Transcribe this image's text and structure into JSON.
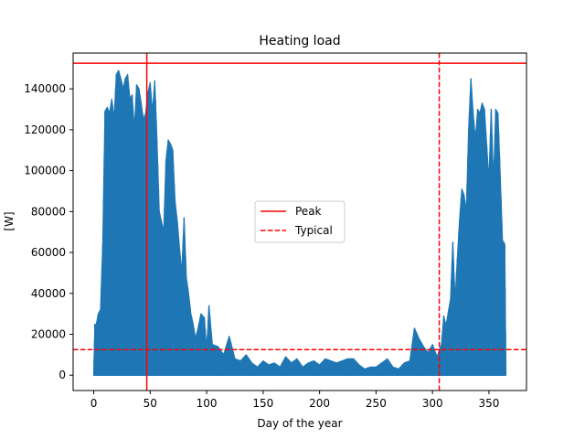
{
  "chart_data": {
    "type": "line",
    "title": "Heating load",
    "xlabel": "Day of the year",
    "ylabel": "[W]",
    "xlim": [
      -18.25,
      383.25
    ],
    "ylim": [
      -7500,
      157500
    ],
    "xticks": [
      0,
      50,
      100,
      150,
      200,
      250,
      300,
      350
    ],
    "yticks": [
      0,
      20000,
      40000,
      60000,
      80000,
      100000,
      120000,
      140000
    ],
    "grid": false,
    "legend_position": "center",
    "series_color": "#1f77b4",
    "series": [
      {
        "name": "",
        "envelope_points": [
          [
            0,
            0
          ],
          [
            1,
            25000
          ],
          [
            2,
            24000
          ],
          [
            4,
            30000
          ],
          [
            6,
            32000
          ],
          [
            8,
            64000
          ],
          [
            10,
            129000
          ],
          [
            12,
            131000
          ],
          [
            14,
            128000
          ],
          [
            16,
            135000
          ],
          [
            18,
            125000
          ],
          [
            20,
            147000
          ],
          [
            22,
            149000
          ],
          [
            24,
            145000
          ],
          [
            26,
            140000
          ],
          [
            28,
            145000
          ],
          [
            30,
            147000
          ],
          [
            32,
            135000
          ],
          [
            34,
            137000
          ],
          [
            36,
            120000
          ],
          [
            38,
            142000
          ],
          [
            40,
            140000
          ],
          [
            42,
            133000
          ],
          [
            44,
            125000
          ],
          [
            46,
            128000
          ],
          [
            48,
            138000
          ],
          [
            50,
            143000
          ],
          [
            52,
            128000
          ],
          [
            54,
            144000
          ],
          [
            56,
            115000
          ],
          [
            58,
            80000
          ],
          [
            60,
            75000
          ],
          [
            62,
            70000
          ],
          [
            64,
            105000
          ],
          [
            66,
            115000
          ],
          [
            68,
            113000
          ],
          [
            70,
            110000
          ],
          [
            72,
            85000
          ],
          [
            74,
            75000
          ],
          [
            76,
            62000
          ],
          [
            78,
            50000
          ],
          [
            80,
            77000
          ],
          [
            82,
            48000
          ],
          [
            84,
            40000
          ],
          [
            86,
            30000
          ],
          [
            88,
            25000
          ],
          [
            90,
            18000
          ],
          [
            92,
            22000
          ],
          [
            95,
            30000
          ],
          [
            98,
            28000
          ],
          [
            100,
            12000
          ],
          [
            102,
            34000
          ],
          [
            105,
            15000
          ],
          [
            110,
            14000
          ],
          [
            115,
            10000
          ],
          [
            120,
            19000
          ],
          [
            125,
            8000
          ],
          [
            130,
            7000
          ],
          [
            135,
            10000
          ],
          [
            140,
            6000
          ],
          [
            145,
            4000
          ],
          [
            150,
            7000
          ],
          [
            155,
            5000
          ],
          [
            160,
            6000
          ],
          [
            165,
            4000
          ],
          [
            170,
            9000
          ],
          [
            175,
            6000
          ],
          [
            180,
            8000
          ],
          [
            185,
            4000
          ],
          [
            190,
            6000
          ],
          [
            195,
            7000
          ],
          [
            200,
            5000
          ],
          [
            205,
            8000
          ],
          [
            210,
            7000
          ],
          [
            215,
            6000
          ],
          [
            220,
            7000
          ],
          [
            225,
            8000
          ],
          [
            230,
            8000
          ],
          [
            235,
            5000
          ],
          [
            240,
            3000
          ],
          [
            245,
            4000
          ],
          [
            250,
            4000
          ],
          [
            255,
            6000
          ],
          [
            260,
            8000
          ],
          [
            265,
            4000
          ],
          [
            270,
            3000
          ],
          [
            275,
            6000
          ],
          [
            280,
            7000
          ],
          [
            284,
            23000
          ],
          [
            288,
            18000
          ],
          [
            292,
            14000
          ],
          [
            296,
            11000
          ],
          [
            300,
            15000
          ],
          [
            304,
            9000
          ],
          [
            308,
            15000
          ],
          [
            310,
            29000
          ],
          [
            312,
            24000
          ],
          [
            314,
            31000
          ],
          [
            316,
            37000
          ],
          [
            318,
            65000
          ],
          [
            320,
            36000
          ],
          [
            322,
            57000
          ],
          [
            324,
            76000
          ],
          [
            326,
            91000
          ],
          [
            328,
            88000
          ],
          [
            330,
            80000
          ],
          [
            332,
            120000
          ],
          [
            334,
            145000
          ],
          [
            336,
            128000
          ],
          [
            338,
            115000
          ],
          [
            340,
            130000
          ],
          [
            342,
            128000
          ],
          [
            344,
            133000
          ],
          [
            346,
            130000
          ],
          [
            348,
            112000
          ],
          [
            350,
            95000
          ],
          [
            352,
            130000
          ],
          [
            354,
            93000
          ],
          [
            356,
            130000
          ],
          [
            358,
            128000
          ],
          [
            360,
            97000
          ],
          [
            362,
            66000
          ],
          [
            364,
            64000
          ],
          [
            365,
            0
          ]
        ]
      }
    ],
    "reference_lines": [
      {
        "legend_label": "Peak",
        "color": "#ff0000",
        "style": "solid",
        "x": 47,
        "y": 152500
      },
      {
        "legend_label": "Typical",
        "color": "#ff0000",
        "style": "dashed",
        "x": 306,
        "y": 12500
      }
    ]
  }
}
